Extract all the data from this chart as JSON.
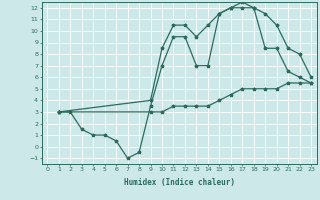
{
  "xlabel": "Humidex (Indice chaleur)",
  "bg_color": "#cce8e8",
  "line_color": "#2d6b5e",
  "grid_color": "#ffffff",
  "xlim": [
    -0.5,
    23.5
  ],
  "ylim": [
    -1.5,
    12.5
  ],
  "xticks": [
    0,
    1,
    2,
    3,
    4,
    5,
    6,
    7,
    8,
    9,
    10,
    11,
    12,
    13,
    14,
    15,
    16,
    17,
    18,
    19,
    20,
    21,
    22,
    23
  ],
  "yticks": [
    -1,
    0,
    1,
    2,
    3,
    4,
    5,
    6,
    7,
    8,
    9,
    10,
    11,
    12
  ],
  "line1_x": [
    1,
    2,
    3,
    4,
    5,
    6,
    7,
    8,
    9,
    10,
    11,
    12,
    13,
    14,
    15,
    16,
    17,
    18,
    19,
    20,
    21,
    22,
    23
  ],
  "line1_y": [
    3.0,
    3.0,
    1.5,
    1.0,
    1.0,
    0.5,
    -1.0,
    -0.5,
    3.5,
    7.0,
    9.5,
    9.5,
    7.0,
    7.0,
    11.5,
    12.0,
    12.0,
    12.0,
    8.5,
    8.5,
    6.5,
    6.0,
    5.5
  ],
  "line2_x": [
    1,
    9,
    10,
    11,
    12,
    13,
    14,
    15,
    16,
    17,
    18,
    19,
    20,
    21,
    22,
    23
  ],
  "line2_y": [
    3.0,
    4.0,
    8.5,
    10.5,
    10.5,
    9.5,
    10.5,
    11.5,
    12.0,
    12.5,
    12.0,
    11.5,
    10.5,
    8.5,
    8.0,
    6.0
  ],
  "line3_x": [
    1,
    9,
    10,
    11,
    12,
    13,
    14,
    15,
    16,
    17,
    18,
    19,
    20,
    21,
    22,
    23
  ],
  "line3_y": [
    3.0,
    3.0,
    3.0,
    3.5,
    3.5,
    3.5,
    3.5,
    4.0,
    4.5,
    5.0,
    5.0,
    5.0,
    5.0,
    5.5,
    5.5,
    5.5
  ]
}
